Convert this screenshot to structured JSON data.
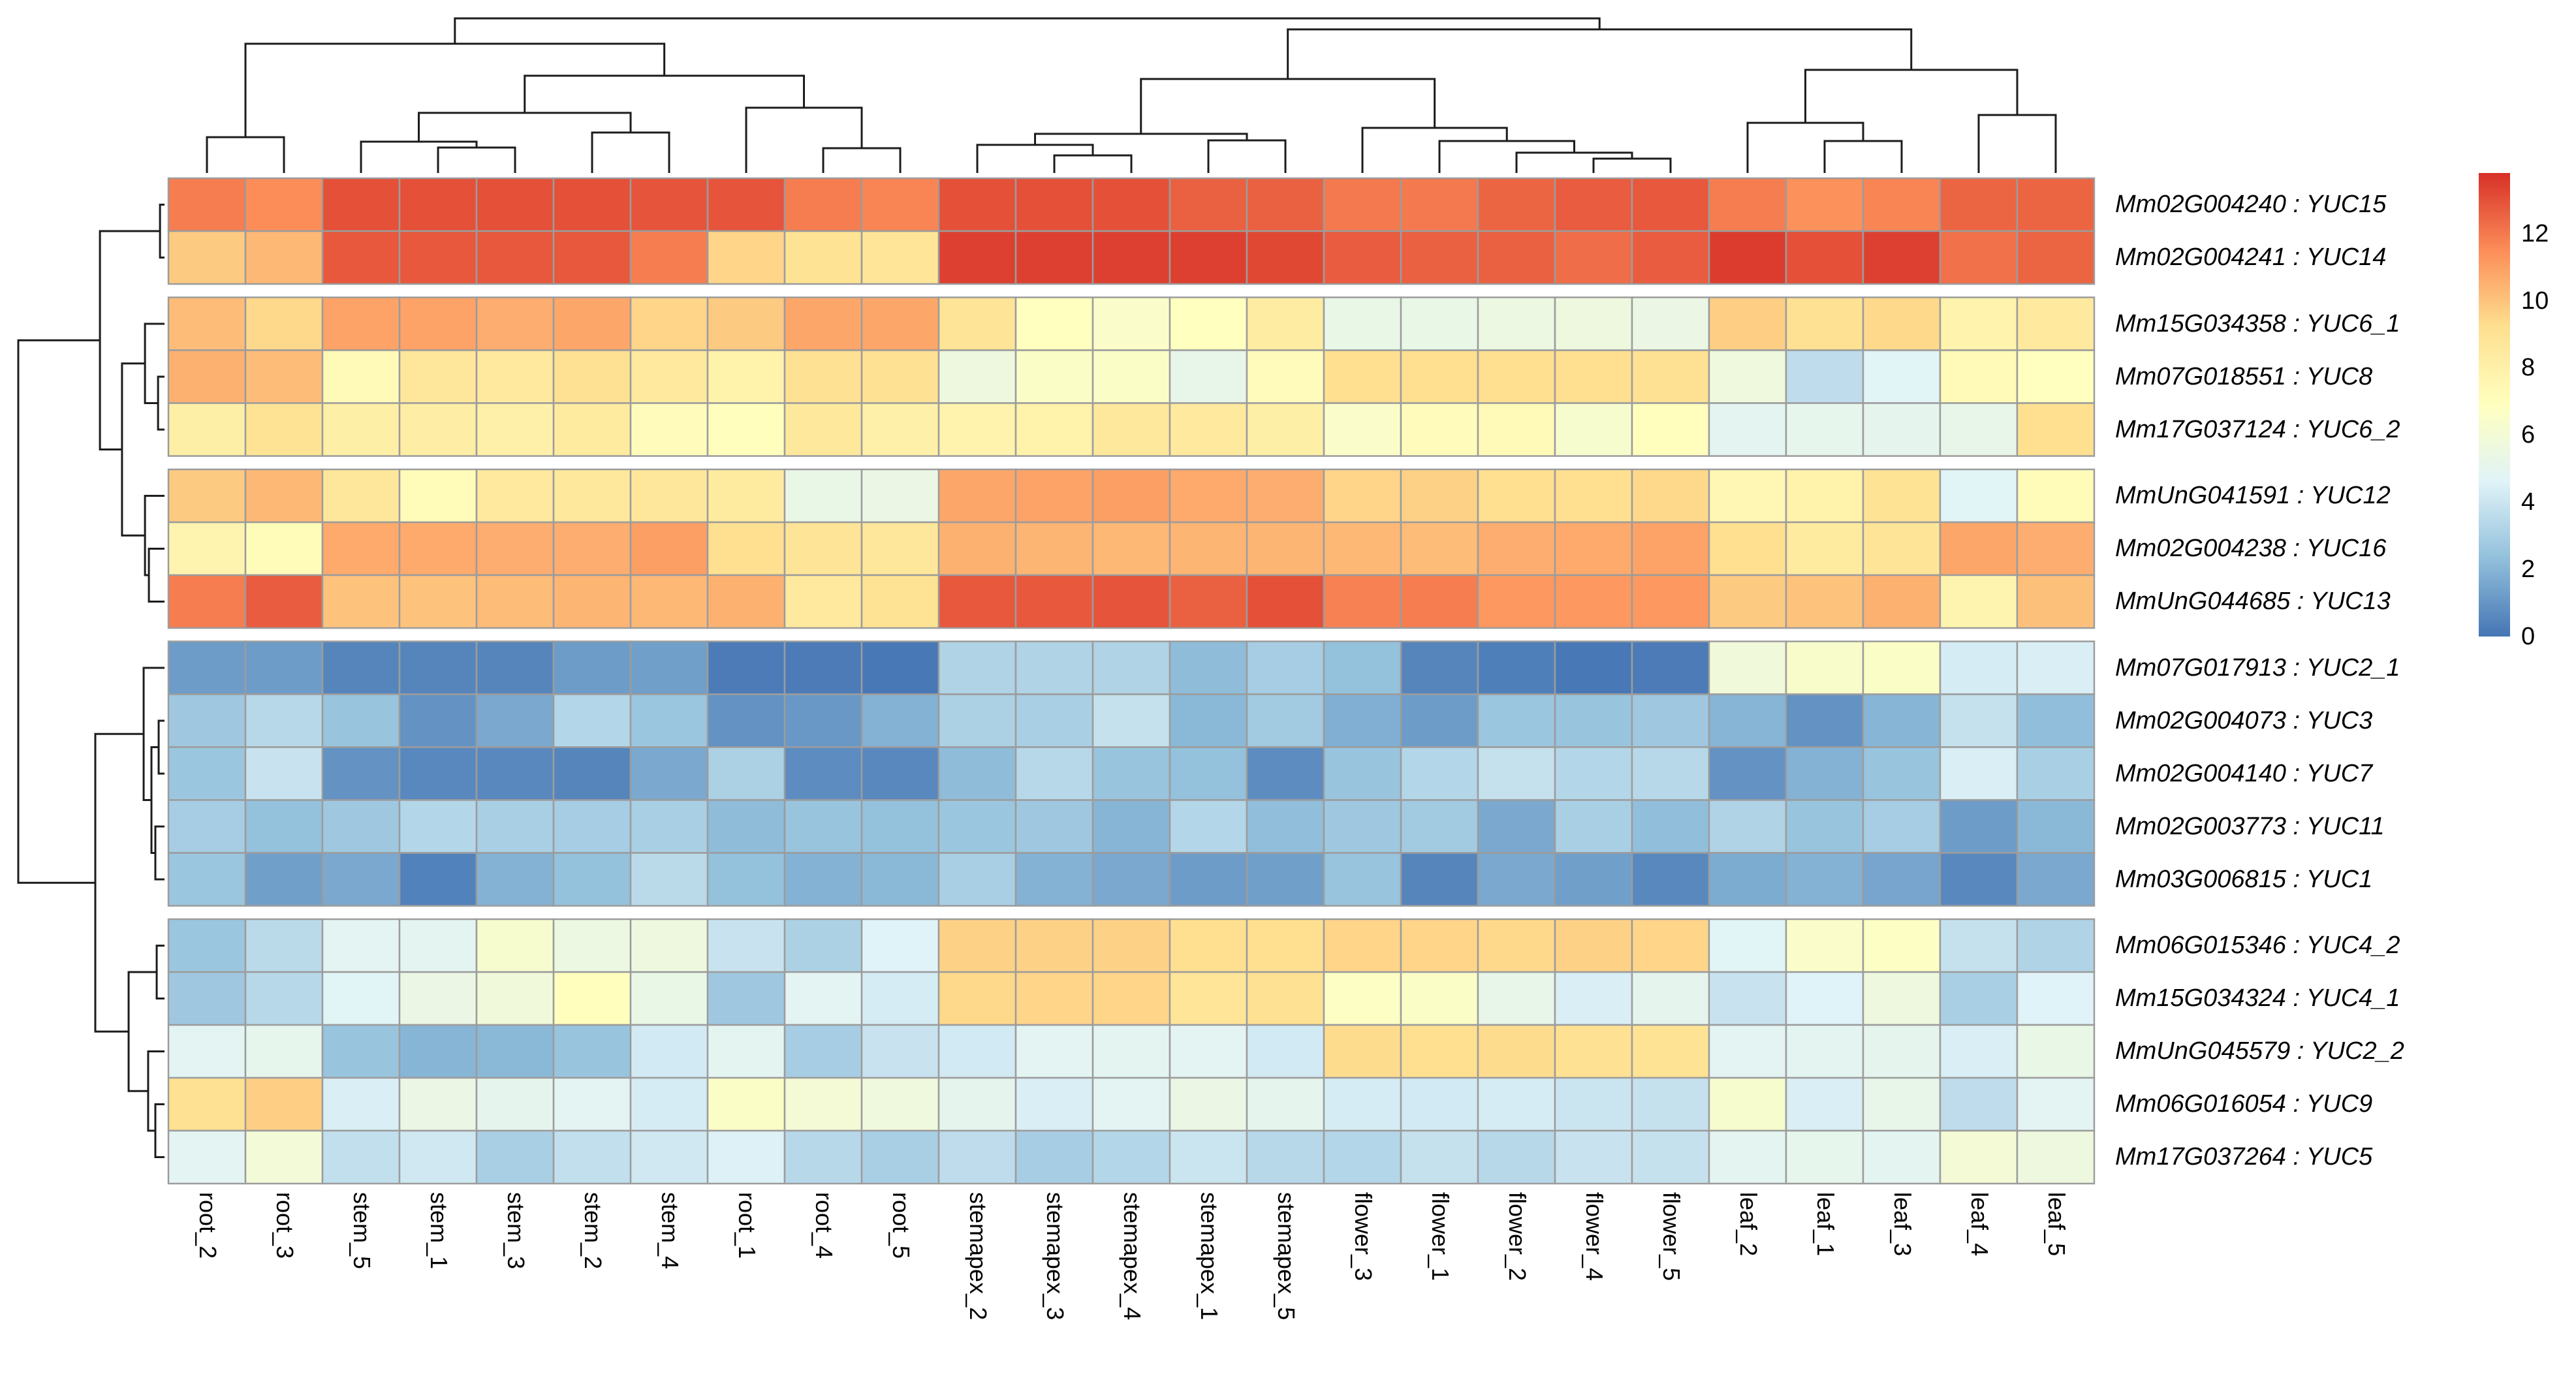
{
  "chart_data": {
    "type": "heatmap",
    "title": "",
    "columns": [
      "root_2",
      "root_3",
      "stem_5",
      "stem_1",
      "stem_3",
      "stem_2",
      "stem_4",
      "root_1",
      "root_4",
      "root_5",
      "stemapex_2",
      "stemapex_3",
      "stemapex_4",
      "stemapex_1",
      "stemapex_5",
      "flower_3",
      "flower_1",
      "flower_2",
      "flower_4",
      "flower_5",
      "leaf_2",
      "leaf_1",
      "leaf_3",
      "leaf_4",
      "leaf_5"
    ],
    "rows": [
      "Mm02G004240 : YUC15",
      "Mm02G004241 : YUC14",
      "Mm15G034358 : YUC6_1",
      "Mm07G018551 : YUC8",
      "Mm17G037124 : YUC6_2",
      "MmUnG041591 : YUC12",
      "Mm02G004238 : YUC16",
      "MmUnG044685 : YUC13",
      "Mm07G017913 : YUC2_1",
      "Mm02G004073 : YUC3",
      "Mm02G004140 : YUC7",
      "Mm02G003773 : YUC11",
      "Mm03G006815 : YUC1",
      "Mm06G015346 : YUC4_2",
      "Mm15G034324 : YUC4_1",
      "MmUnG045579 : YUC2_2",
      "Mm06G016054 : YUC9",
      "Mm17G037264 : YUC5"
    ],
    "row_gaps_after": [
      1,
      4,
      7,
      12
    ],
    "values": [
      [
        11.9,
        11.5,
        13.0,
        13.0,
        13.0,
        13.0,
        12.9,
        12.9,
        11.9,
        11.7,
        13.0,
        13.0,
        13.0,
        12.6,
        12.6,
        12.0,
        12.0,
        12.5,
        12.7,
        12.8,
        11.9,
        11.4,
        11.7,
        12.5,
        12.5
      ],
      [
        9.8,
        10.3,
        12.8,
        12.8,
        12.8,
        12.8,
        11.9,
        9.5,
        9.0,
        8.8,
        13.4,
        13.4,
        13.4,
        13.4,
        13.2,
        12.7,
        12.6,
        12.6,
        12.3,
        12.7,
        13.5,
        13.0,
        13.4,
        12.2,
        12.5
      ],
      [
        10.2,
        9.4,
        10.9,
        10.9,
        10.6,
        10.8,
        9.5,
        9.8,
        10.8,
        10.8,
        8.9,
        6.9,
        6.5,
        6.9,
        8.3,
        5.3,
        5.3,
        5.5,
        5.6,
        5.4,
        9.7,
        9.1,
        9.4,
        7.8,
        8.5
      ],
      [
        10.5,
        10.2,
        7.3,
        8.7,
        8.5,
        9.1,
        8.5,
        7.9,
        9.1,
        9.1,
        5.6,
        6.6,
        6.6,
        5.2,
        7.1,
        9.2,
        9.2,
        9.2,
        9.2,
        9.1,
        5.7,
        3.6,
        4.7,
        7.3,
        6.9
      ],
      [
        8.1,
        9.0,
        8.1,
        8.2,
        8.0,
        8.4,
        7.1,
        7.0,
        8.6,
        8.0,
        7.8,
        7.9,
        8.6,
        8.5,
        8.1,
        6.5,
        7.1,
        7.3,
        6.3,
        7.0,
        4.9,
        5.1,
        5.0,
        5.2,
        9.2
      ],
      [
        9.8,
        10.3,
        8.7,
        7.2,
        8.5,
        8.6,
        8.7,
        8.4,
        5.3,
        5.4,
        10.8,
        10.9,
        11.0,
        10.7,
        10.6,
        9.5,
        9.6,
        9.2,
        9.2,
        9.4,
        7.5,
        7.9,
        9.0,
        4.7,
        7.2
      ],
      [
        7.7,
        7.2,
        10.7,
        10.7,
        10.6,
        10.6,
        11.0,
        9.2,
        8.9,
        8.7,
        10.5,
        10.4,
        10.3,
        10.4,
        10.4,
        10.3,
        10.2,
        10.6,
        10.7,
        10.9,
        9.2,
        8.4,
        8.9,
        10.8,
        10.6
      ],
      [
        11.9,
        12.7,
        10.0,
        10.0,
        10.2,
        10.4,
        10.3,
        10.5,
        8.5,
        9.0,
        12.8,
        12.8,
        12.9,
        12.6,
        13.0,
        11.8,
        11.9,
        11.2,
        11.2,
        11.2,
        9.8,
        10.0,
        10.5,
        7.7,
        10.1
      ],
      [
        1.2,
        1.2,
        0.5,
        0.5,
        0.5,
        1.2,
        1.3,
        0.2,
        0.2,
        0.1,
        3.2,
        3.2,
        3.2,
        2.2,
        2.9,
        2.4,
        0.5,
        0.3,
        0.1,
        0.2,
        5.8,
        6.4,
        6.6,
        4.3,
        4.4
      ],
      [
        2.7,
        3.4,
        2.5,
        0.9,
        1.6,
        3.3,
        2.6,
        0.9,
        1.1,
        1.9,
        3.1,
        3.0,
        3.8,
        2.1,
        2.8,
        1.8,
        1.2,
        2.6,
        2.5,
        2.7,
        2.0,
        0.9,
        2.0,
        3.8,
        2.3
      ],
      [
        2.6,
        3.9,
        0.9,
        0.6,
        0.6,
        0.5,
        1.6,
        3.1,
        0.7,
        0.6,
        2.2,
        3.4,
        2.5,
        2.4,
        0.7,
        2.5,
        3.3,
        3.8,
        3.3,
        3.4,
        0.9,
        1.9,
        2.5,
        4.4,
        3.0
      ],
      [
        2.9,
        2.4,
        2.7,
        3.3,
        3.0,
        2.9,
        3.0,
        2.2,
        2.5,
        2.4,
        2.6,
        2.7,
        2.0,
        3.3,
        2.3,
        2.7,
        2.8,
        1.6,
        3.0,
        2.3,
        3.2,
        2.5,
        2.9,
        1.2,
        2.1
      ],
      [
        2.6,
        1.3,
        1.6,
        0.4,
        1.9,
        2.4,
        3.5,
        2.4,
        1.9,
        2.1,
        3.0,
        1.9,
        1.6,
        1.2,
        1.3,
        2.5,
        0.5,
        1.6,
        1.3,
        0.6,
        1.7,
        1.9,
        1.5,
        0.6,
        1.6
      ],
      [
        2.6,
        3.5,
        4.8,
        4.9,
        6.3,
        5.5,
        5.6,
        3.9,
        3.1,
        4.6,
        9.6,
        9.6,
        9.6,
        9.2,
        9.2,
        9.5,
        9.5,
        9.4,
        9.6,
        9.5,
        4.7,
        6.5,
        6.7,
        3.8,
        3.2
      ],
      [
        2.7,
        3.4,
        4.7,
        5.4,
        5.8,
        7.0,
        5.3,
        2.7,
        4.8,
        4.3,
        9.4,
        9.5,
        9.5,
        8.8,
        9.1,
        6.7,
        6.6,
        5.2,
        4.4,
        5.0,
        3.9,
        4.6,
        5.6,
        3.0,
        4.6
      ],
      [
        4.8,
        5.1,
        2.5,
        2.0,
        2.1,
        2.5,
        4.2,
        4.9,
        2.9,
        3.9,
        4.2,
        4.8,
        4.9,
        4.8,
        4.2,
        9.3,
        9.2,
        9.3,
        9.1,
        9.0,
        4.8,
        4.9,
        5.0,
        4.4,
        5.3
      ],
      [
        9.1,
        9.7,
        4.4,
        5.4,
        5.0,
        4.8,
        4.3,
        6.6,
        6.0,
        5.7,
        5.0,
        4.4,
        4.8,
        5.4,
        5.0,
        4.3,
        4.2,
        4.3,
        4.0,
        3.8,
        6.3,
        4.4,
        5.2,
        3.6,
        4.8
      ],
      [
        4.8,
        5.9,
        3.7,
        4.1,
        3.0,
        3.7,
        4.1,
        4.5,
        3.4,
        3.0,
        3.6,
        2.9,
        3.3,
        4.0,
        3.4,
        3.3,
        3.8,
        3.4,
        3.9,
        3.8,
        4.9,
        5.1,
        4.9,
        6.0,
        5.6
      ]
    ],
    "colormap": {
      "stops": [
        "#4575B4",
        "#91BFDB",
        "#E0F3F8",
        "#FFFFBF",
        "#FEE090",
        "#FC8D59",
        "#D73027"
      ],
      "min": 0,
      "max": 13.8
    },
    "legend": {
      "ticks": [
        "12",
        "10",
        "8",
        "6",
        "4",
        "2",
        "0"
      ],
      "tick_values": [
        12,
        10,
        8,
        6,
        4,
        2,
        0
      ],
      "position": "right"
    },
    "grid_line_color": "#9C9C9C",
    "dendrogram_line_color": "#1C1C1C",
    "col_dendrogram": {
      "h": 0.967,
      "c": [
        {
          "h": 0.808,
          "c": [
            {
              "h": 0.224,
              "c": [
                {
                  "i": 0
                },
                {
                  "i": 1
                }
              ]
            },
            {
              "h": 0.608,
              "c": [
                {
                  "h": 0.376,
                  "c": [
                    {
                      "h": 0.196,
                      "c": [
                        {
                          "i": 2
                        },
                        {
                          "h": 0.159,
                          "c": [
                            {
                              "i": 3
                            },
                            {
                              "i": 4
                            }
                          ]
                        }
                      ]
                    },
                    {
                      "h": 0.253,
                      "c": [
                        {
                          "i": 5
                        },
                        {
                          "i": 6
                        }
                      ]
                    }
                  ]
                },
                {
                  "h": 0.408,
                  "c": [
                    {
                      "i": 7
                    },
                    {
                      "h": 0.155,
                      "c": [
                        {
                          "i": 8
                        },
                        {
                          "i": 9
                        }
                      ]
                    }
                  ]
                }
              ]
            }
          ]
        },
        {
          "h": 0.898,
          "c": [
            {
              "h": 0.588,
              "c": [
                {
                  "h": 0.245,
                  "c": [
                    {
                      "h": 0.176,
                      "c": [
                        {
                          "i": 10
                        },
                        {
                          "h": 0.11,
                          "c": [
                            {
                              "i": 11
                            },
                            {
                              "i": 12
                            }
                          ]
                        }
                      ]
                    },
                    {
                      "h": 0.204,
                      "c": [
                        {
                          "i": 13
                        },
                        {
                          "i": 14
                        }
                      ]
                    }
                  ]
                },
                {
                  "h": 0.282,
                  "c": [
                    {
                      "i": 15
                    },
                    {
                      "h": 0.2,
                      "c": [
                        {
                          "i": 16
                        },
                        {
                          "h": 0.127,
                          "c": [
                            {
                              "i": 17
                            },
                            {
                              "h": 0.09,
                              "c": [
                                {
                                  "i": 18
                                },
                                {
                                  "i": 19
                                }
                              ]
                            }
                          ]
                        }
                      ]
                    }
                  ]
                }
              ]
            },
            {
              "h": 0.645,
              "c": [
                {
                  "h": 0.314,
                  "c": [
                    {
                      "i": 20
                    },
                    {
                      "h": 0.2,
                      "c": [
                        {
                          "i": 21
                        },
                        {
                          "i": 22
                        }
                      ]
                    }
                  ]
                },
                {
                  "h": 0.363,
                  "c": [
                    {
                      "i": 23
                    },
                    {
                      "i": 24
                    }
                  ]
                }
              ]
            }
          ]
        }
      ]
    },
    "row_dendrogram": {
      "h": 0.974,
      "c": [
        {
          "h": 0.43,
          "c": [
            {
              "h": 0.03,
              "c": [
                {
                  "i": 0
                },
                {
                  "i": 1
                }
              ]
            },
            {
              "h": 0.283,
              "c": [
                {
                  "h": 0.13,
                  "c": [
                    {
                      "i": 2
                    },
                    {
                      "h": 0.043,
                      "c": [
                        {
                          "i": 3
                        },
                        {
                          "i": 4
                        }
                      ]
                    }
                  ]
                },
                {
                  "h": 0.13,
                  "c": [
                    {
                      "i": 5
                    },
                    {
                      "h": 0.104,
                      "c": [
                        {
                          "i": 6
                        },
                        {
                          "i": 7
                        }
                      ]
                    }
                  ]
                }
              ]
            }
          ]
        },
        {
          "h": 0.461,
          "c": [
            {
              "h": 0.139,
              "c": [
                {
                  "i": 8
                },
                {
                  "h": 0.087,
                  "c": [
                    {
                      "h": 0.039,
                      "c": [
                        {
                          "i": 9
                        },
                        {
                          "i": 10
                        }
                      ]
                    },
                    {
                      "h": 0.061,
                      "c": [
                        {
                          "i": 11
                        },
                        {
                          "i": 12
                        }
                      ]
                    }
                  ]
                }
              ]
            },
            {
              "h": 0.239,
              "c": [
                {
                  "h": 0.052,
                  "c": [
                    {
                      "i": 13
                    },
                    {
                      "i": 14
                    }
                  ]
                },
                {
                  "h": 0.109,
                  "c": [
                    {
                      "i": 15
                    },
                    {
                      "h": 0.061,
                      "c": [
                        {
                          "i": 16
                        },
                        {
                          "i": 17
                        }
                      ]
                    }
                  ]
                }
              ]
            }
          ]
        }
      ]
    }
  }
}
